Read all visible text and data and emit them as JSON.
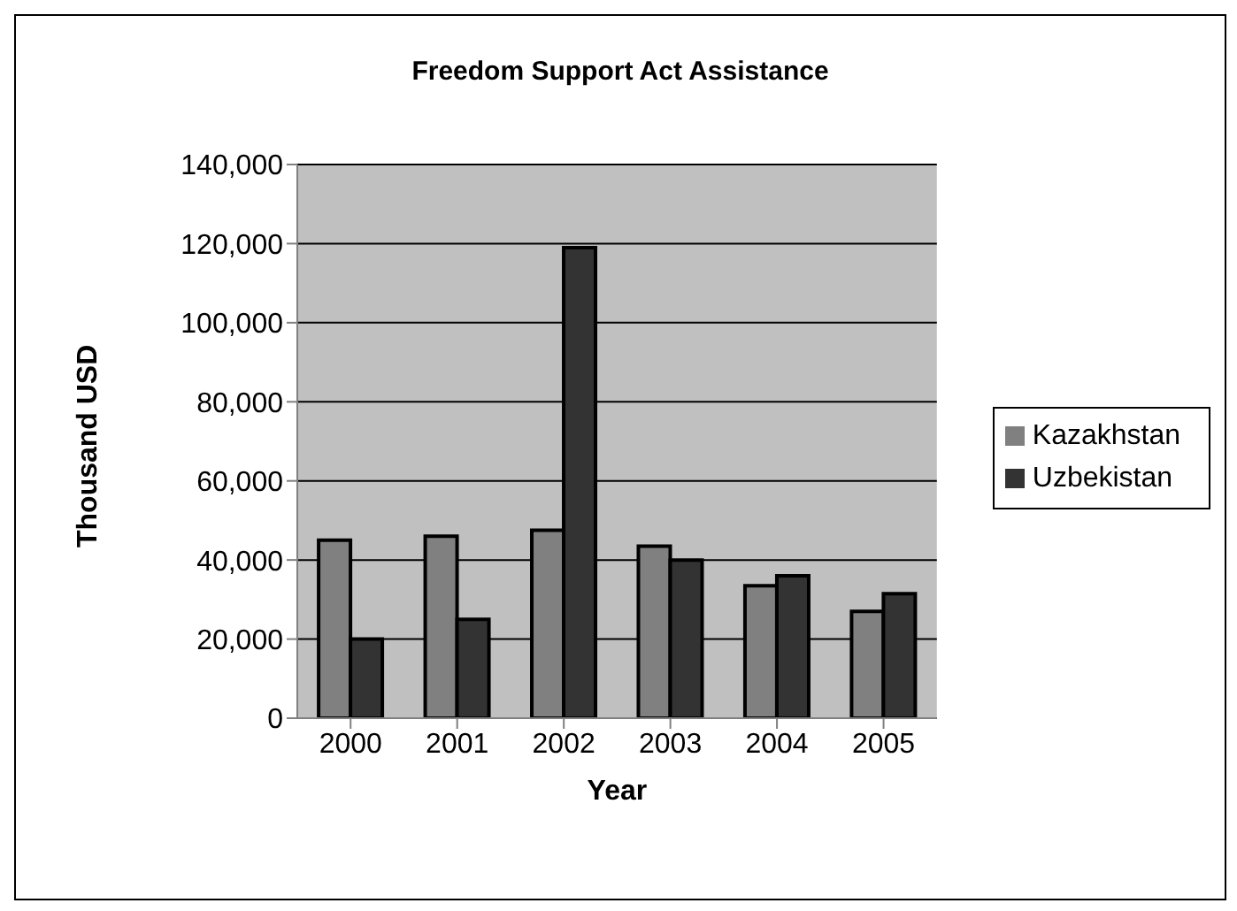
{
  "chart_data": {
    "type": "bar",
    "title": "Freedom Support Act Assistance",
    "xlabel": "Year",
    "ylabel": "Thousand USD",
    "categories": [
      "2000",
      "2001",
      "2002",
      "2003",
      "2004",
      "2005"
    ],
    "series": [
      {
        "name": "Kazakhstan",
        "color": "#808080",
        "values": [
          45000,
          46000,
          47500,
          43500,
          33500,
          27000
        ]
      },
      {
        "name": "Uzbekistan",
        "color": "#333333",
        "values": [
          20000,
          25000,
          119000,
          40000,
          36000,
          31500
        ]
      }
    ],
    "ylim": [
      0,
      140000
    ],
    "yticks": [
      0,
      {
        "value": 20000,
        "label": "20,000"
      },
      {
        "value": 40000,
        "label": "40,000"
      },
      {
        "value": 60000,
        "label": "60,000"
      },
      {
        "value": 80000,
        "label": "80,000"
      },
      {
        "value": 100000,
        "label": "100,000"
      },
      {
        "value": 120000,
        "label": "120,000"
      },
      {
        "value": 140000,
        "label": "140,000"
      }
    ],
    "grid": "y",
    "legend": "right"
  }
}
